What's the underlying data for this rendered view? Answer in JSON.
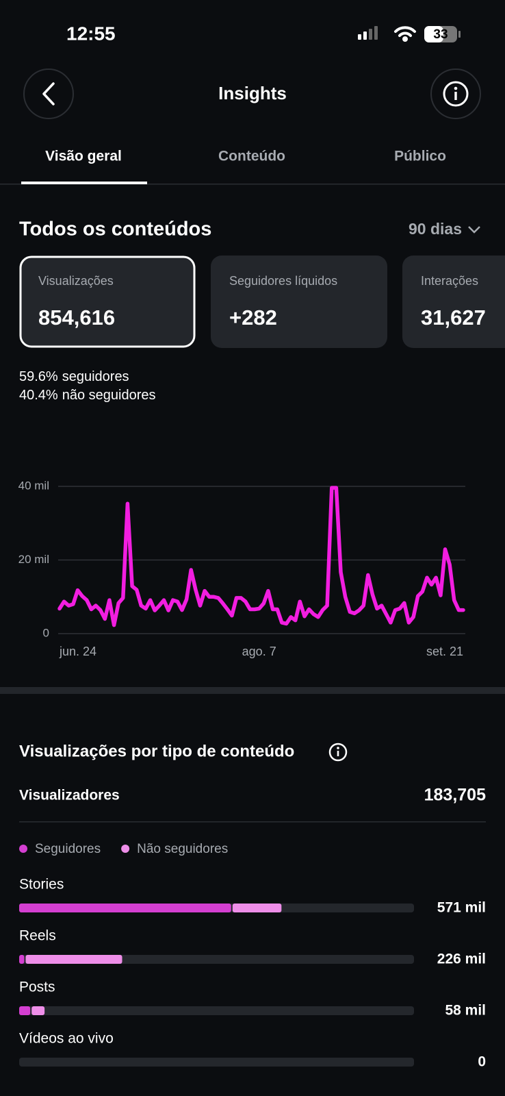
{
  "status_bar": {
    "time": "12:55",
    "battery": "33"
  },
  "header": {
    "title": "Insights"
  },
  "tabs": [
    "Visão geral",
    "Conteúdo",
    "Público"
  ],
  "section": {
    "title": "Todos os conteúdos",
    "period": "90 dias"
  },
  "metrics": [
    {
      "label": "Visualizações",
      "value": "854,616"
    },
    {
      "label": "Seguidores líquidos",
      "value": "+282"
    },
    {
      "label": "Interações",
      "value": "31,627"
    }
  ],
  "audience_split": [
    {
      "percent": "59.6%",
      "label": "seguidores"
    },
    {
      "percent": "40.4%",
      "label": "não seguidores"
    }
  ],
  "viewers": {
    "label": "Visualizadores",
    "value": "183,705"
  },
  "chart_data": [
    {
      "type": "line",
      "color": "#f21ee0",
      "grid": true,
      "categories": [
        "jun. 24",
        null,
        null,
        null,
        null,
        null,
        null,
        null,
        null,
        null,
        null,
        null,
        null,
        null,
        null,
        null,
        null,
        null,
        null,
        null,
        null,
        null,
        null,
        null,
        null,
        null,
        null,
        null,
        null,
        null,
        null,
        null,
        null,
        null,
        null,
        null,
        null,
        null,
        null,
        null,
        null,
        null,
        null,
        null,
        "ago. 7",
        null,
        null,
        null,
        null,
        null,
        null,
        null,
        null,
        null,
        null,
        null,
        null,
        null,
        null,
        null,
        null,
        null,
        null,
        null,
        null,
        null,
        null,
        null,
        null,
        null,
        null,
        null,
        null,
        null,
        null,
        null,
        null,
        null,
        null,
        null,
        null,
        null,
        null,
        null,
        null,
        null,
        null,
        null,
        null,
        "set. 21"
      ],
      "values": [
        6800,
        8700,
        7600,
        8000,
        11800,
        10200,
        9100,
        6600,
        7600,
        6400,
        4000,
        9100,
        2300,
        8300,
        9700,
        35300,
        12900,
        11900,
        7600,
        6800,
        9100,
        6300,
        7600,
        9100,
        6300,
        9100,
        8700,
        6400,
        9300,
        17300,
        11900,
        7600,
        11600,
        10000,
        10000,
        9700,
        8200,
        6600,
        4900,
        9700,
        9700,
        8700,
        6600,
        6600,
        6800,
        8200,
        11600,
        6600,
        6600,
        3000,
        2700,
        4500,
        3600,
        8700,
        4700,
        6600,
        5300,
        4500,
        6400,
        7600,
        39600,
        39600,
        16700,
        10000,
        5900,
        5500,
        6300,
        7600,
        15900,
        10600,
        6800,
        7600,
        5300,
        3000,
        6400,
        6800,
        8300,
        3000,
        4500,
        10200,
        11400,
        15200,
        13300,
        15200,
        10400,
        22900,
        18800,
        9100,
        6400,
        6400
      ],
      "ylim": [
        0,
        40000
      ],
      "yticks": [
        0,
        {
          "value": 20000,
          "label": "20 mil"
        },
        {
          "value": 40000,
          "label": "40 mil"
        }
      ]
    },
    {
      "type": "bar",
      "horizontal": true,
      "stacked": true,
      "title": "Visualizações por tipo de conteúdo",
      "categories": [
        "Stories",
        "Reels",
        "Posts",
        "Vídeos ao vivo"
      ],
      "series": [
        {
          "name": "Seguidores",
          "color": "#d43fd1",
          "values": [
            462000,
            14000,
            27000,
            0
          ]
        },
        {
          "name": "Não seguidores",
          "color": "#ee8ee8",
          "values": [
            109000,
            212000,
            31000,
            0
          ]
        }
      ],
      "values": [
        571000,
        226000,
        58000,
        0
      ],
      "value_labels": [
        "571 mil",
        "226 mil",
        "58 mil",
        "0"
      ],
      "xlim": [
        0,
        855000
      ]
    }
  ]
}
